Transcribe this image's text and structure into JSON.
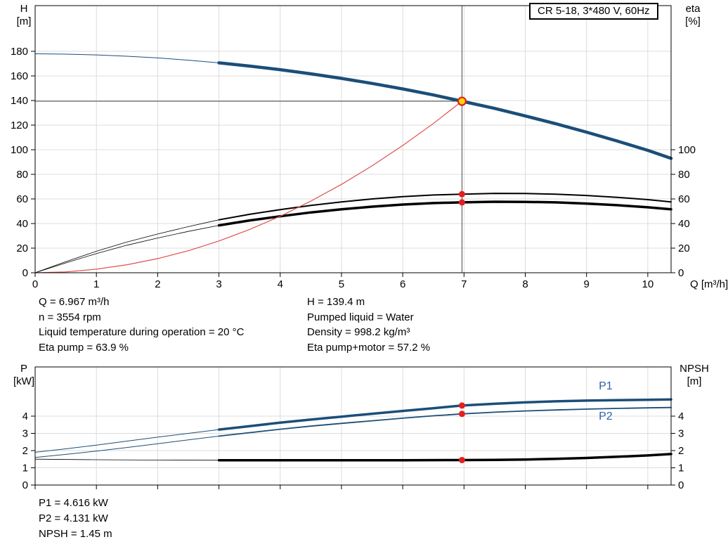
{
  "title_box": "CR 5-18, 3*480 V, 60Hz",
  "annotations": {
    "mid_left": [
      "Q = 6.967 m³/h",
      "n = 3554 rpm",
      "Liquid temperature during operation = 20 °C",
      "Eta pump = 63.9 %"
    ],
    "mid_right": [
      "H = 139.4 m",
      "Pumped liquid = Water",
      "Density = 998.2 kg/m³",
      "Eta pump+motor = 57.2 %"
    ],
    "bottom": [
      "P1 = 4.616 kW",
      "P2 = 4.131 kW",
      "NPSH = 1.45 m"
    ]
  },
  "chart_data": [
    {
      "name": "performance",
      "type": "line",
      "x_label": "Q [m³/h]",
      "y_left_label": [
        "H",
        "[m]"
      ],
      "y_right_label": [
        "eta",
        "[%]"
      ],
      "xlim": [
        0,
        10.38
      ],
      "ylim": [
        0,
        217.14
      ],
      "x_ticks": [
        0,
        1,
        2,
        3,
        4,
        5,
        6,
        7,
        8,
        9,
        10
      ],
      "y_ticks_left": [
        0,
        20,
        40,
        60,
        80,
        100,
        120,
        140,
        160,
        180
      ],
      "y_ticks_right": [
        0,
        20,
        40,
        60,
        80,
        100
      ],
      "show_x_tick_labels": true,
      "duty_guides": {
        "q": 6.967,
        "h": 139.4
      },
      "series": [
        {
          "name": "head",
          "color": "#1b4e79",
          "width": 4.5,
          "width_thin": 1,
          "split_q": 3,
          "points": [
            [
              0,
              178
            ],
            [
              0.5,
              177.7
            ],
            [
              1,
              177.1
            ],
            [
              1.5,
              176.0
            ],
            [
              2,
              174.6
            ],
            [
              2.5,
              172.8
            ],
            [
              3,
              170.6
            ],
            [
              3.5,
              168.0
            ],
            [
              4,
              165.1
            ],
            [
              4.5,
              161.7
            ],
            [
              5,
              158.0
            ],
            [
              5.5,
              153.9
            ],
            [
              6,
              149.4
            ],
            [
              6.5,
              144.5
            ],
            [
              6.967,
              139.4
            ],
            [
              7.5,
              133.6
            ],
            [
              8,
              127.5
            ],
            [
              8.5,
              121.1
            ],
            [
              9,
              114.3
            ],
            [
              9.5,
              107.1
            ],
            [
              10,
              99.5
            ],
            [
              10.38,
              93.0
            ]
          ]
        },
        {
          "name": "eta-pump",
          "color": "#000000",
          "width": 2,
          "width_thin": 0.8,
          "split_q": 3,
          "points": [
            [
              0,
              0
            ],
            [
              0.5,
              9
            ],
            [
              1,
              17.5
            ],
            [
              1.5,
              25
            ],
            [
              2,
              31.5
            ],
            [
              2.5,
              37.5
            ],
            [
              3,
              43
            ],
            [
              3.5,
              47.5
            ],
            [
              4,
              51.3
            ],
            [
              4.5,
              54.7
            ],
            [
              5,
              57.6
            ],
            [
              5.5,
              60.0
            ],
            [
              6,
              61.9
            ],
            [
              6.5,
              63.2
            ],
            [
              6.967,
              63.9
            ],
            [
              7.5,
              64.5
            ],
            [
              8,
              64.4
            ],
            [
              8.5,
              63.9
            ],
            [
              9,
              62.8
            ],
            [
              9.5,
              61.3
            ],
            [
              10,
              59.4
            ],
            [
              10.38,
              57.6
            ]
          ]
        },
        {
          "name": "eta-pump-motor",
          "color": "#000000",
          "width": 3.5,
          "width_thin": 0.8,
          "split_q": 3,
          "points": [
            [
              0,
              0
            ],
            [
              0.5,
              8
            ],
            [
              1,
              15.6
            ],
            [
              1.5,
              22.4
            ],
            [
              2,
              28.2
            ],
            [
              2.5,
              33.6
            ],
            [
              3,
              38.5
            ],
            [
              3.5,
              42.5
            ],
            [
              4,
              45.9
            ],
            [
              4.5,
              49.0
            ],
            [
              5,
              51.6
            ],
            [
              5.5,
              53.7
            ],
            [
              6,
              55.4
            ],
            [
              6.5,
              56.6
            ],
            [
              6.967,
              57.2
            ],
            [
              7.5,
              57.7
            ],
            [
              8,
              57.6
            ],
            [
              8.5,
              57.2
            ],
            [
              9,
              56.2
            ],
            [
              9.5,
              54.9
            ],
            [
              10,
              53.2
            ],
            [
              10.38,
              51.6
            ]
          ]
        },
        {
          "name": "system-curve",
          "color": "#e05050",
          "width": 1.2,
          "width_thin": 1.2,
          "split_q": 0,
          "points": [
            [
              0,
              0
            ],
            [
              0.5,
              0.7
            ],
            [
              1,
              2.9
            ],
            [
              1.5,
              6.5
            ],
            [
              2,
              11.5
            ],
            [
              2.5,
              17.9
            ],
            [
              3,
              25.8
            ],
            [
              3.5,
              35.2
            ],
            [
              4,
              45.9
            ],
            [
              4.5,
              58.2
            ],
            [
              5,
              71.8
            ],
            [
              5.5,
              86.9
            ],
            [
              6,
              103.4
            ],
            [
              6.5,
              121.3
            ],
            [
              6.967,
              139.4
            ]
          ]
        }
      ],
      "markers": [
        {
          "name": "eta-pump-point",
          "q": 6.967,
          "v": 63.9,
          "r": 4.5,
          "fill": "#e61e1e"
        },
        {
          "name": "eta-pump-motor-point",
          "q": 6.967,
          "v": 57.2,
          "r": 4.5,
          "fill": "#e61e1e"
        },
        {
          "name": "duty-point",
          "q": 6.967,
          "v": 139.4,
          "r": 5.5,
          "fill": "#ffd800",
          "stroke": "#e02020",
          "stroke_width": 2.2
        }
      ]
    },
    {
      "name": "power",
      "type": "line",
      "x_label": "",
      "y_left_label": [
        "P",
        "[kW]"
      ],
      "y_right_label": [
        "NPSH",
        "[m]"
      ],
      "xlim": [
        0,
        10.38
      ],
      "ylim": [
        0,
        6.857
      ],
      "x_ticks": [
        0,
        1,
        2,
        3,
        4,
        5,
        6,
        7,
        8,
        9,
        10
      ],
      "y_ticks_left": [
        0,
        1,
        2,
        3,
        4
      ],
      "y_ticks_right": [
        0,
        1,
        2,
        3,
        4
      ],
      "show_x_tick_labels": false,
      "series": [
        {
          "name": "p1",
          "color": "#1b4e79",
          "width": 3.5,
          "width_thin": 1,
          "split_q": 3,
          "label": {
            "text": "P1",
            "q": 9.2,
            "v": 5.55,
            "color": "#2c5fa8"
          },
          "points": [
            [
              0,
              1.9
            ],
            [
              0.5,
              2.1
            ],
            [
              1,
              2.32
            ],
            [
              1.5,
              2.55
            ],
            [
              2,
              2.78
            ],
            [
              2.5,
              3.0
            ],
            [
              3,
              3.22
            ],
            [
              3.5,
              3.42
            ],
            [
              4,
              3.62
            ],
            [
              4.5,
              3.8
            ],
            [
              5,
              3.97
            ],
            [
              5.5,
              4.14
            ],
            [
              6,
              4.3
            ],
            [
              6.5,
              4.46
            ],
            [
              6.967,
              4.616
            ],
            [
              7.5,
              4.72
            ],
            [
              8,
              4.8
            ],
            [
              8.5,
              4.86
            ],
            [
              9,
              4.9
            ],
            [
              9.5,
              4.93
            ],
            [
              10,
              4.95
            ],
            [
              10.38,
              4.97
            ]
          ]
        },
        {
          "name": "p2",
          "color": "#1b4e79",
          "width": 1.8,
          "width_thin": 1,
          "split_q": 3,
          "label": {
            "text": "P2",
            "q": 9.2,
            "v": 3.8,
            "color": "#2c5fa8"
          },
          "points": [
            [
              0,
              1.6
            ],
            [
              0.5,
              1.78
            ],
            [
              1,
              1.97
            ],
            [
              1.5,
              2.18
            ],
            [
              2,
              2.4
            ],
            [
              2.5,
              2.62
            ],
            [
              3,
              2.84
            ],
            [
              3.5,
              3.04
            ],
            [
              4,
              3.24
            ],
            [
              4.5,
              3.42
            ],
            [
              5,
              3.58
            ],
            [
              5.5,
              3.73
            ],
            [
              6,
              3.88
            ],
            [
              6.5,
              4.02
            ],
            [
              6.967,
              4.131
            ],
            [
              7.5,
              4.23
            ],
            [
              8,
              4.3
            ],
            [
              8.5,
              4.36
            ],
            [
              9,
              4.41
            ],
            [
              9.5,
              4.45
            ],
            [
              10,
              4.48
            ],
            [
              10.38,
              4.5
            ]
          ]
        },
        {
          "name": "npsh",
          "color": "#000000",
          "width": 3.5,
          "width_thin": 0.8,
          "split_q": 3,
          "points": [
            [
              0,
              1.5
            ],
            [
              1,
              1.47
            ],
            [
              2,
              1.45
            ],
            [
              3,
              1.44
            ],
            [
              4,
              1.44
            ],
            [
              5,
              1.44
            ],
            [
              6,
              1.44
            ],
            [
              6.967,
              1.45
            ],
            [
              7.5,
              1.46
            ],
            [
              8,
              1.48
            ],
            [
              8.5,
              1.52
            ],
            [
              9,
              1.57
            ],
            [
              9.5,
              1.64
            ],
            [
              10,
              1.72
            ],
            [
              10.38,
              1.8
            ]
          ]
        }
      ],
      "markers": [
        {
          "name": "p1-point",
          "q": 6.967,
          "v": 4.616,
          "r": 4.5,
          "fill": "#e61e1e"
        },
        {
          "name": "p2-point",
          "q": 6.967,
          "v": 4.131,
          "r": 4.5,
          "fill": "#e61e1e"
        },
        {
          "name": "npsh-point",
          "q": 6.967,
          "v": 1.45,
          "r": 4.5,
          "fill": "#e61e1e"
        }
      ]
    }
  ]
}
